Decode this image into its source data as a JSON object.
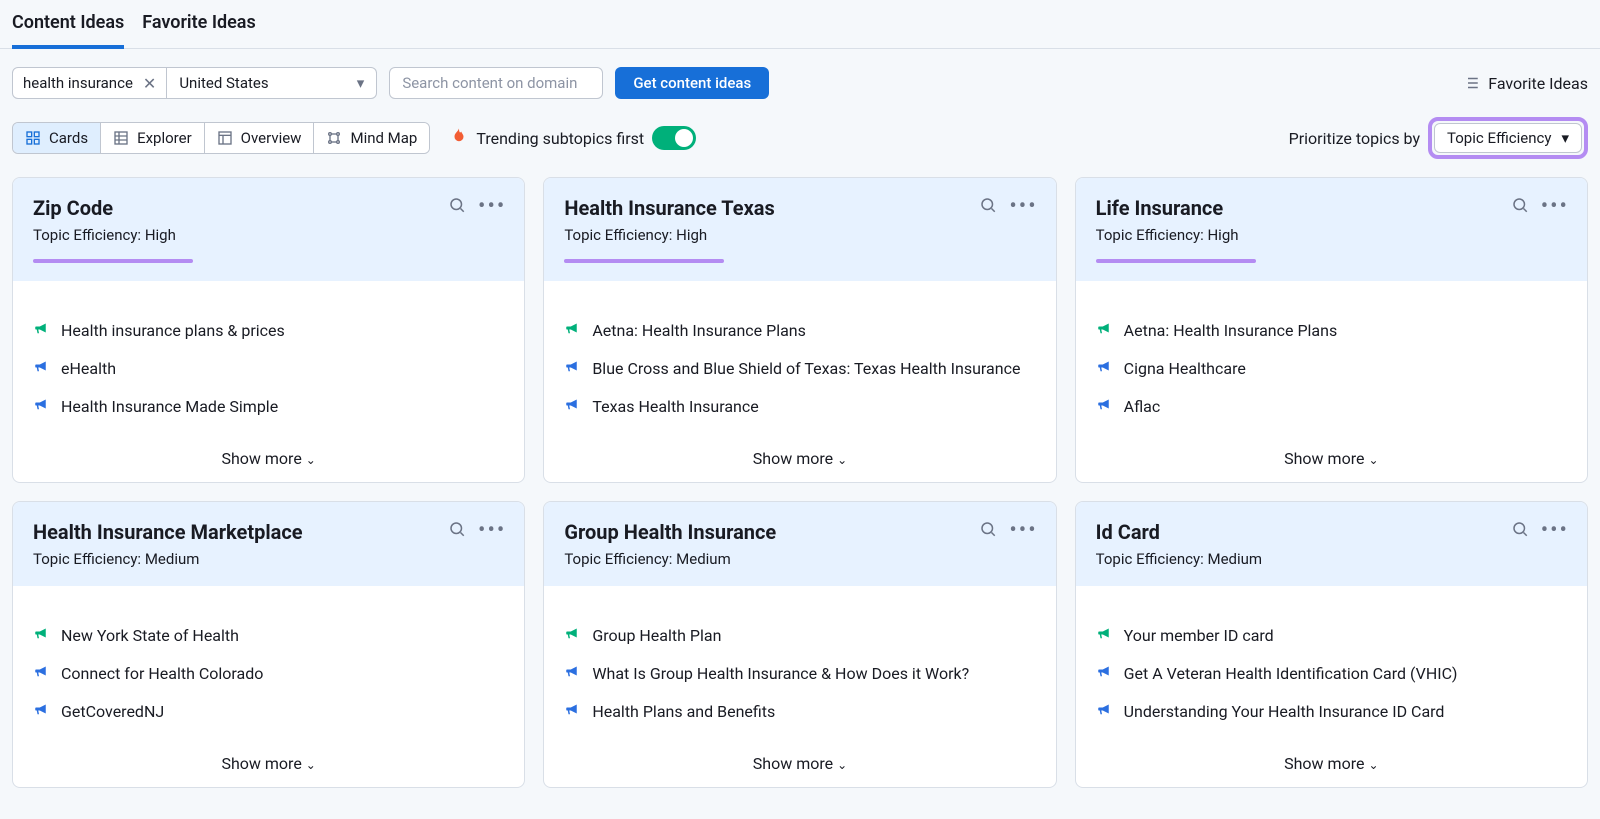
{
  "tabs": {
    "content_ideas": "Content Ideas",
    "favorite_ideas": "Favorite Ideas"
  },
  "toolbar": {
    "keyword": "health insurance",
    "country": "United States",
    "domain_placeholder": "Search content on domain",
    "get_ideas": "Get content ideas",
    "favorite_link": "Favorite Ideas"
  },
  "views": {
    "cards": "Cards",
    "explorer": "Explorer",
    "overview": "Overview",
    "mindmap": "Mind Map"
  },
  "trending_label": "Trending subtopics first",
  "prioritize": {
    "label": "Prioritize topics by",
    "value": "Topic Efficiency"
  },
  "efficiency_label": "Topic Efficiency:",
  "show_more": "Show more",
  "cards": [
    {
      "title": "Zip Code",
      "eff": "High",
      "ul_width": 160,
      "items": [
        {
          "c": "green",
          "t": "Health insurance plans & prices"
        },
        {
          "c": "blue",
          "t": "eHealth"
        },
        {
          "c": "blue",
          "t": "Health Insurance Made Simple"
        }
      ]
    },
    {
      "title": "Health Insurance Texas",
      "eff": "High",
      "ul_width": 160,
      "items": [
        {
          "c": "green",
          "t": "Aetna: Health Insurance Plans"
        },
        {
          "c": "blue",
          "t": "Blue Cross and Blue Shield of Texas: Texas Health Insurance"
        },
        {
          "c": "blue",
          "t": "Texas Health Insurance"
        }
      ]
    },
    {
      "title": "Life Insurance",
      "eff": "High",
      "ul_width": 160,
      "items": [
        {
          "c": "green",
          "t": "Aetna: Health Insurance Plans"
        },
        {
          "c": "blue",
          "t": "Cigna Healthcare"
        },
        {
          "c": "blue",
          "t": "Aflac"
        }
      ]
    },
    {
      "title": "Health Insurance Marketplace",
      "eff": "Medium",
      "ul_width": 0,
      "items": [
        {
          "c": "green",
          "t": "New York State of Health"
        },
        {
          "c": "blue",
          "t": "Connect for Health Colorado"
        },
        {
          "c": "blue",
          "t": "GetCoveredNJ"
        }
      ]
    },
    {
      "title": "Group Health Insurance",
      "eff": "Medium",
      "ul_width": 0,
      "items": [
        {
          "c": "green",
          "t": "Group Health Plan"
        },
        {
          "c": "blue",
          "t": "What Is Group Health Insurance & How Does it Work?"
        },
        {
          "c": "blue",
          "t": "Health Plans and Benefits"
        }
      ]
    },
    {
      "title": "Id Card",
      "eff": "Medium",
      "ul_width": 0,
      "items": [
        {
          "c": "green",
          "t": "Your member ID card"
        },
        {
          "c": "blue",
          "t": "Get A Veteran Health Identification Card (VHIC)"
        },
        {
          "c": "blue",
          "t": "Understanding Your Health Insurance ID Card"
        }
      ]
    }
  ],
  "colors": {
    "green": "#00b07a",
    "blue": "#2b6fe0",
    "purple_hl": "#b48cf2",
    "accent": "#176fd8"
  }
}
